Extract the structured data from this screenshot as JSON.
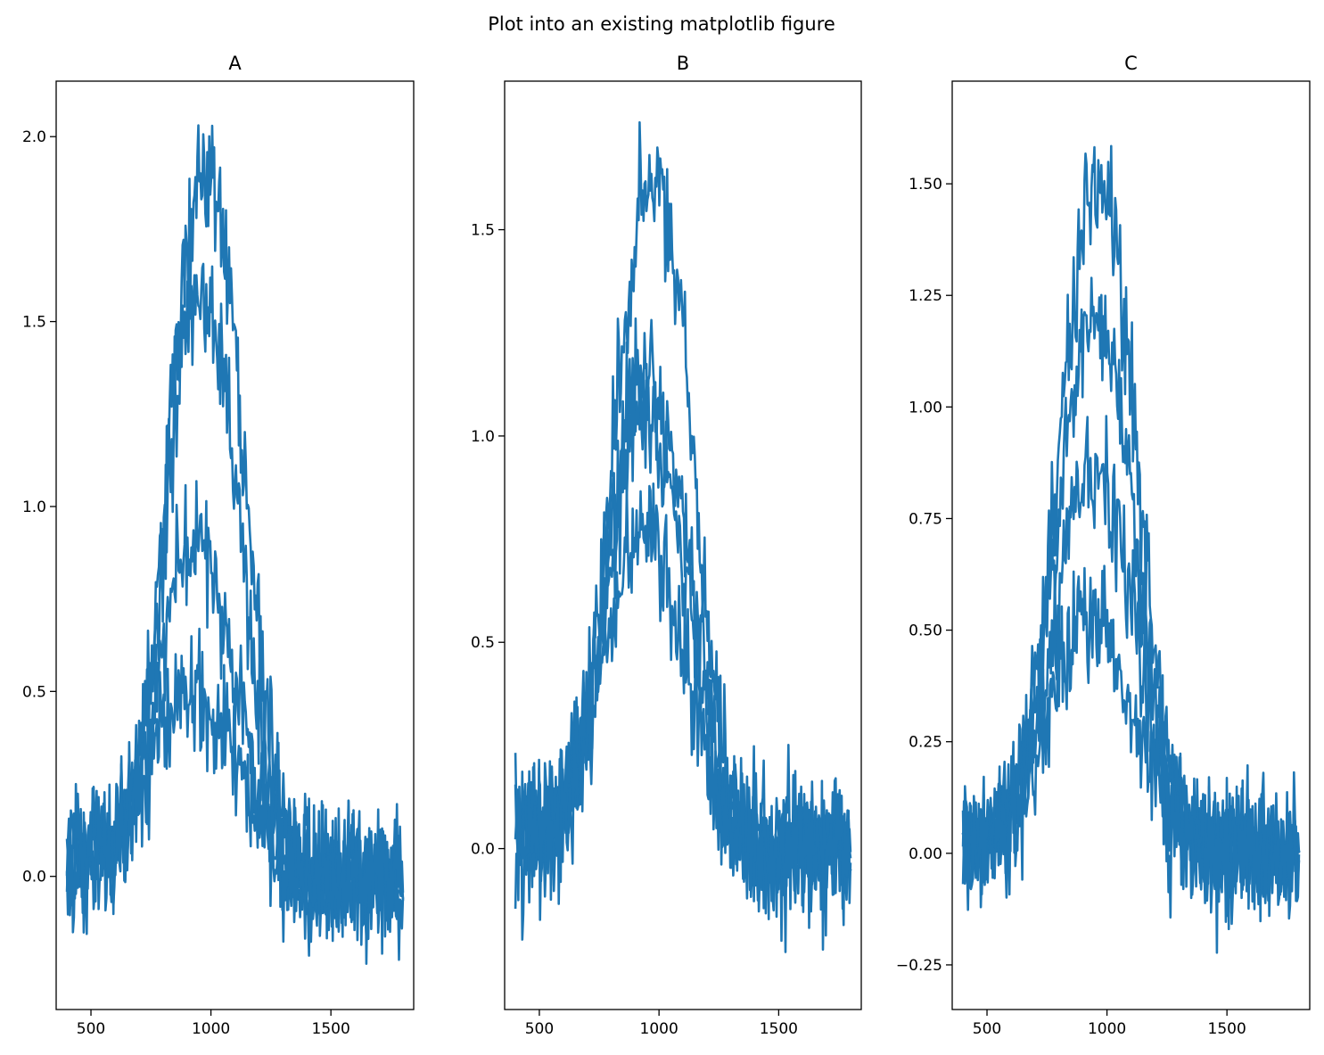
{
  "figure": {
    "suptitle": "Plot into an existing matplotlib figure"
  },
  "colors": {
    "line": "#1f77b4"
  },
  "chart_data": [
    {
      "type": "line",
      "title": "A",
      "xlabel": "",
      "ylabel": "",
      "xlim": [
        355,
        1845
      ],
      "ylim": [
        -0.36,
        2.15
      ],
      "xticks": [
        500,
        1000,
        1500
      ],
      "xtick_labels": [
        "500",
        "1000",
        "1500"
      ],
      "yticks": [
        0.0,
        0.5,
        1.0,
        1.5,
        2.0
      ],
      "ytick_labels": [
        "0.0",
        "0.5",
        "1.0",
        "1.5",
        "2.0"
      ],
      "grid": false,
      "legend": "none",
      "x": [
        400,
        450,
        500,
        550,
        600,
        650,
        700,
        750,
        800,
        850,
        900,
        950,
        1000,
        1050,
        1100,
        1150,
        1200,
        1250,
        1300,
        1350,
        1400,
        1450,
        1500,
        1550,
        1600,
        1650,
        1700,
        1750,
        1800
      ],
      "series": [
        {
          "values": [
            0.05,
            0.06,
            0.05,
            0.08,
            0.12,
            0.2,
            0.33,
            0.55,
            0.9,
            1.35,
            1.7,
            1.88,
            1.9,
            1.75,
            1.45,
            1.05,
            0.65,
            0.35,
            0.15,
            0.05,
            0.02,
            0.01,
            0.0,
            0.0,
            0.0,
            0.0,
            0.0,
            0.0,
            0.0
          ],
          "noise": 0.09
        },
        {
          "values": [
            0.04,
            0.05,
            0.05,
            0.07,
            0.1,
            0.18,
            0.3,
            0.5,
            0.85,
            1.25,
            1.55,
            1.62,
            1.55,
            1.35,
            1.05,
            0.72,
            0.42,
            0.2,
            0.08,
            0.03,
            0.01,
            0.0,
            0.0,
            0.0,
            0.0,
            0.0,
            0.0,
            0.0,
            0.0
          ],
          "noise": 0.09
        },
        {
          "values": [
            0.03,
            0.04,
            0.05,
            0.06,
            0.09,
            0.15,
            0.25,
            0.4,
            0.6,
            0.8,
            0.9,
            0.92,
            0.85,
            0.72,
            0.55,
            0.38,
            0.22,
            0.11,
            0.05,
            0.02,
            0.01,
            0.0,
            0.0,
            0.0,
            0.0,
            0.0,
            0.0,
            0.0,
            0.0
          ],
          "noise": 0.08
        },
        {
          "values": [
            0.02,
            0.03,
            0.04,
            0.05,
            0.07,
            0.12,
            0.2,
            0.3,
            0.4,
            0.48,
            0.52,
            0.5,
            0.46,
            0.4,
            0.32,
            0.24,
            0.16,
            0.09,
            0.05,
            0.02,
            0.01,
            0.0,
            0.0,
            0.0,
            0.0,
            0.0,
            0.0,
            0.0,
            0.0
          ],
          "noise": 0.08
        }
      ]
    },
    {
      "type": "line",
      "title": "B",
      "xlabel": "",
      "ylabel": "",
      "xlim": [
        355,
        1845
      ],
      "ylim": [
        -0.39,
        1.86
      ],
      "xticks": [
        500,
        1000,
        1500
      ],
      "xtick_labels": [
        "500",
        "1000",
        "1500"
      ],
      "yticks": [
        0.0,
        0.5,
        1.0,
        1.5
      ],
      "ytick_labels": [
        "0.0",
        "0.5",
        "1.0",
        "1.5"
      ],
      "grid": false,
      "legend": "none",
      "x": [
        400,
        450,
        500,
        550,
        600,
        650,
        700,
        750,
        800,
        850,
        900,
        950,
        1000,
        1050,
        1100,
        1150,
        1200,
        1250,
        1300,
        1350,
        1400,
        1450,
        1500,
        1550,
        1600,
        1650,
        1700,
        1750,
        1800
      ],
      "series": [
        {
          "values": [
            0.02,
            0.03,
            0.05,
            0.08,
            0.13,
            0.22,
            0.36,
            0.6,
            0.92,
            1.25,
            1.48,
            1.6,
            1.62,
            1.5,
            1.25,
            0.9,
            0.55,
            0.28,
            0.12,
            0.05,
            0.02,
            0.01,
            0.0,
            0.0,
            0.0,
            0.0,
            0.0,
            0.0,
            0.0
          ],
          "noise": 0.08
        },
        {
          "values": [
            0.02,
            0.03,
            0.05,
            0.07,
            0.12,
            0.2,
            0.33,
            0.52,
            0.78,
            1.0,
            1.12,
            1.15,
            1.1,
            0.98,
            0.8,
            0.58,
            0.36,
            0.18,
            0.08,
            0.03,
            0.01,
            0.0,
            0.0,
            0.0,
            0.0,
            0.0,
            0.0,
            0.0,
            0.0
          ],
          "noise": 0.08
        },
        {
          "values": [
            0.02,
            0.03,
            0.04,
            0.06,
            0.1,
            0.18,
            0.3,
            0.48,
            0.7,
            0.9,
            1.02,
            1.05,
            1.0,
            0.88,
            0.72,
            0.52,
            0.33,
            0.17,
            0.07,
            0.03,
            0.01,
            0.0,
            0.0,
            0.0,
            0.0,
            0.0,
            0.0,
            0.0,
            0.0
          ],
          "noise": 0.08
        },
        {
          "values": [
            0.01,
            0.02,
            0.03,
            0.05,
            0.08,
            0.14,
            0.24,
            0.38,
            0.54,
            0.68,
            0.75,
            0.76,
            0.72,
            0.63,
            0.5,
            0.36,
            0.22,
            0.11,
            0.05,
            0.02,
            0.01,
            0.0,
            0.0,
            0.0,
            0.0,
            0.0,
            0.0,
            0.0,
            0.0
          ],
          "noise": 0.08
        }
      ]
    },
    {
      "type": "line",
      "title": "C",
      "xlabel": "",
      "ylabel": "",
      "xlim": [
        355,
        1845
      ],
      "ylim": [
        -0.35,
        1.73
      ],
      "xticks": [
        500,
        1000,
        1500
      ],
      "xtick_labels": [
        "500",
        "1000",
        "1500"
      ],
      "yticks": [
        -0.25,
        0.0,
        0.25,
        0.5,
        0.75,
        1.0,
        1.25,
        1.5
      ],
      "ytick_labels": [
        "−0.25",
        "0.00",
        "0.25",
        "0.50",
        "0.75",
        "1.00",
        "1.25",
        "1.50"
      ],
      "grid": false,
      "legend": "none",
      "x": [
        400,
        450,
        500,
        550,
        600,
        650,
        700,
        750,
        800,
        850,
        900,
        950,
        1000,
        1050,
        1100,
        1150,
        1200,
        1250,
        1300,
        1350,
        1400,
        1450,
        1500,
        1550,
        1600,
        1650,
        1700,
        1750,
        1800
      ],
      "series": [
        {
          "values": [
            0.02,
            0.03,
            0.05,
            0.08,
            0.13,
            0.22,
            0.36,
            0.58,
            0.88,
            1.2,
            1.42,
            1.5,
            1.45,
            1.3,
            1.05,
            0.75,
            0.46,
            0.23,
            0.1,
            0.04,
            0.02,
            0.01,
            0.0,
            0.0,
            0.0,
            0.0,
            0.0,
            0.0,
            0.0
          ],
          "noise": 0.07
        },
        {
          "values": [
            0.02,
            0.03,
            0.04,
            0.07,
            0.11,
            0.19,
            0.31,
            0.5,
            0.75,
            1.0,
            1.15,
            1.2,
            1.15,
            1.02,
            0.82,
            0.58,
            0.36,
            0.18,
            0.08,
            0.03,
            0.01,
            0.0,
            0.0,
            0.0,
            0.0,
            0.0,
            0.0,
            0.0,
            0.0
          ],
          "noise": 0.07
        },
        {
          "values": [
            0.02,
            0.03,
            0.04,
            0.06,
            0.09,
            0.15,
            0.25,
            0.4,
            0.58,
            0.75,
            0.84,
            0.86,
            0.82,
            0.72,
            0.58,
            0.42,
            0.26,
            0.13,
            0.06,
            0.02,
            0.01,
            0.0,
            0.0,
            0.0,
            0.0,
            0.0,
            0.0,
            0.0,
            0.0
          ],
          "noise": 0.07
        },
        {
          "values": [
            0.01,
            0.02,
            0.03,
            0.05,
            0.08,
            0.12,
            0.2,
            0.3,
            0.4,
            0.48,
            0.52,
            0.52,
            0.49,
            0.43,
            0.35,
            0.26,
            0.17,
            0.09,
            0.04,
            0.02,
            0.01,
            0.0,
            0.0,
            0.0,
            0.0,
            0.0,
            0.0,
            0.0,
            0.0
          ],
          "noise": 0.07
        }
      ]
    }
  ]
}
